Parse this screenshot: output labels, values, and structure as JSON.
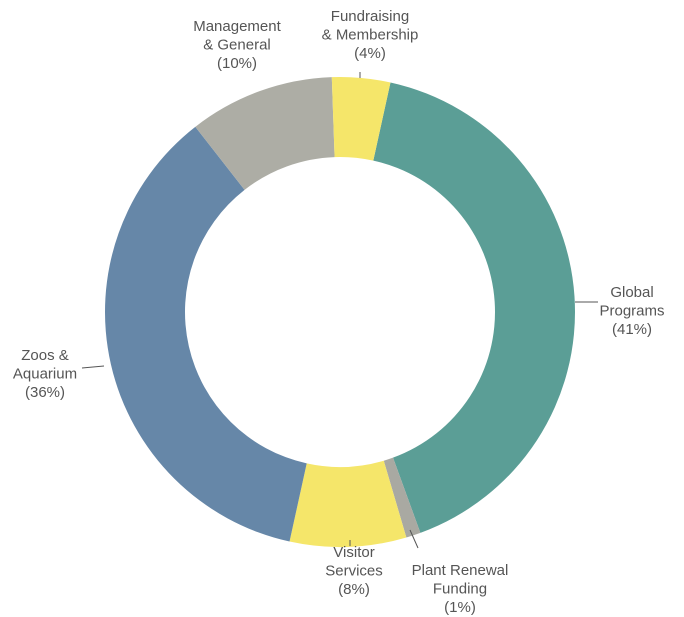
{
  "chart_data": {
    "type": "donut",
    "categories": [
      [
        "Global",
        "Programs"
      ],
      [
        "Plant Renewal",
        "Funding"
      ],
      [
        "Visitor",
        "Services"
      ],
      [
        "Zoos &",
        "Aquarium"
      ],
      [
        "Management",
        "& General"
      ],
      [
        "Fundraising",
        "& Membership"
      ]
    ],
    "values": [
      41,
      1,
      8,
      36,
      10,
      4
    ],
    "value_labels": [
      "(41%)",
      "(1%)",
      "(8%)",
      "(36%)",
      "(10%)",
      "(4%)"
    ],
    "colors": [
      "#5b9e96",
      "#a9a9a2",
      "#f5e66a",
      "#6687a8",
      "#adada5",
      "#f5e66a"
    ]
  }
}
